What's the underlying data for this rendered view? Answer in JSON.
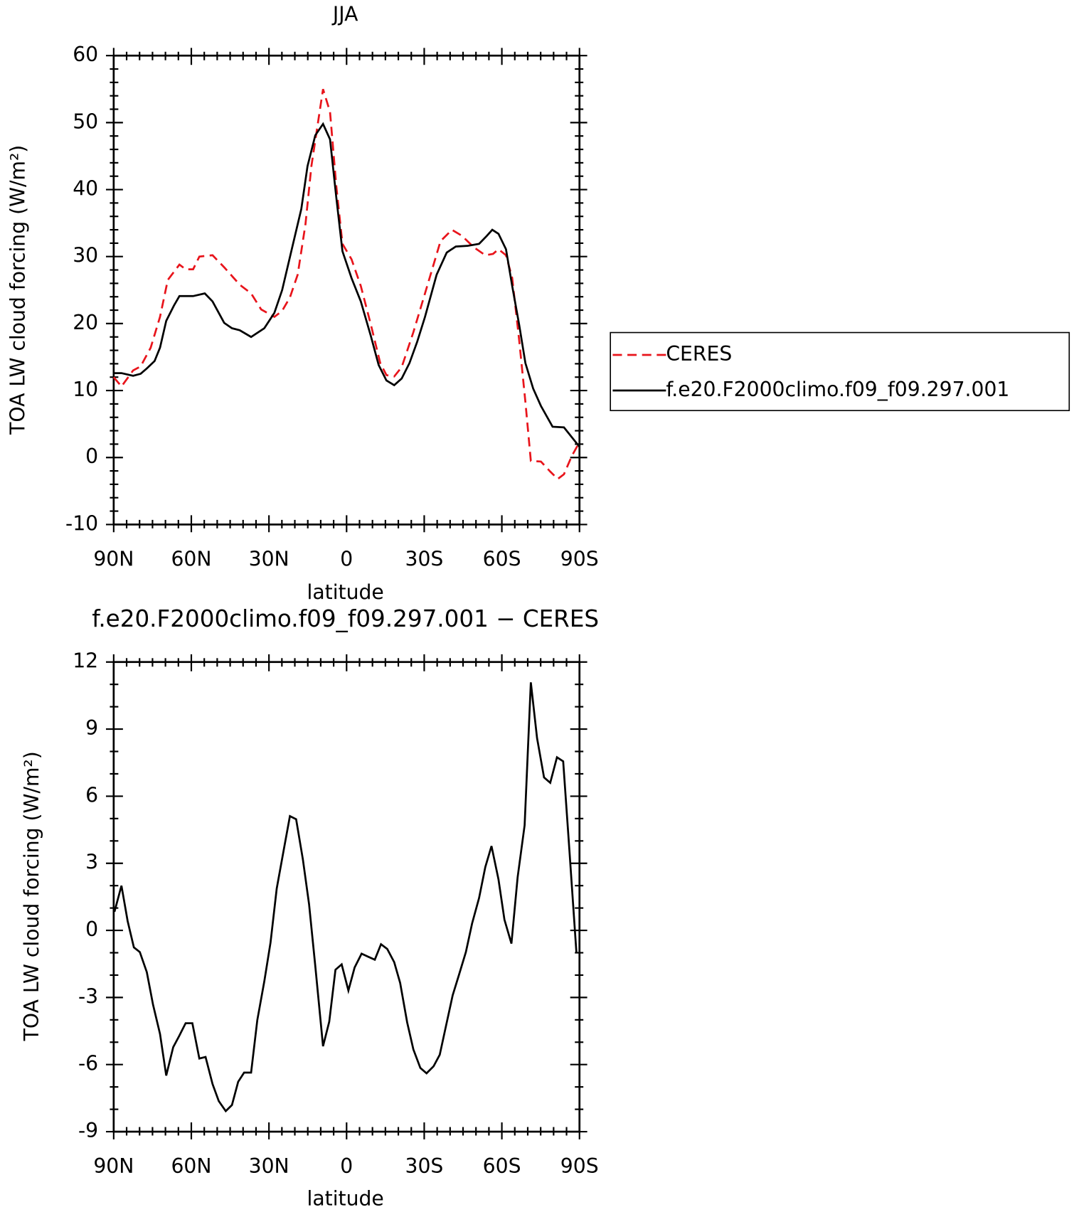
{
  "chart_data": [
    {
      "type": "line",
      "title": "JJA",
      "xlabel": "latitude",
      "ylabel": "TOA LW cloud forcing (W/m²)",
      "xlim": [
        90,
        -90
      ],
      "xticks": [
        {
          "value": 90,
          "label": "90N"
        },
        {
          "value": 60,
          "label": "60N"
        },
        {
          "value": 30,
          "label": "30N"
        },
        0,
        {
          "value": -30,
          "label": "30S"
        },
        {
          "value": -60,
          "label": "60S"
        },
        {
          "value": -90,
          "label": "90S"
        }
      ],
      "ylim": [
        -10,
        60
      ],
      "yticks": [
        -10,
        0,
        10,
        20,
        30,
        40,
        50,
        60
      ],
      "legend": "right",
      "series": [
        {
          "name": "CERES",
          "color": "#e8141b",
          "dashed": true,
          "x": [
            90,
            87.0,
            82.5,
            79.6,
            75.7,
            72.1,
            69.1,
            64.6,
            62.2,
            59.3,
            56.9,
            51.8,
            47.3,
            41.3,
            36.9,
            33.0,
            27.9,
            24.9,
            21.9,
            18.9,
            15.9,
            13.6,
            10.9,
            9.1,
            6.4,
            4.0,
            1.6,
            -1.9,
            -5.5,
            -9.4,
            -13.0,
            -15.4,
            -18.4,
            -21.3,
            -25.8,
            -30.3,
            -36.3,
            -40.7,
            -44.6,
            -49.1,
            -53.6,
            -56.6,
            -58.7,
            -61.6,
            -64.0,
            -66.7,
            -69.1,
            -71.2,
            -75.1,
            -78.7,
            -81.6,
            -84.0,
            -87.0,
            -90
          ],
          "values": [
            12,
            10.6,
            13,
            13.6,
            16.4,
            21,
            26.5,
            28.8,
            28.1,
            28.1,
            30,
            30.2,
            28.4,
            25.8,
            24.5,
            22.1,
            21,
            21.9,
            23.9,
            27.3,
            34.8,
            43.5,
            50.4,
            55,
            51.6,
            40.6,
            31.9,
            29.6,
            25.6,
            19.8,
            14.1,
            12.3,
            12.1,
            13.5,
            18.7,
            24.5,
            32.3,
            34,
            33.1,
            31.4,
            30.2,
            30.4,
            31.1,
            30.2,
            26.8,
            17.5,
            8.3,
            -0.5,
            -0.6,
            -2.1,
            -3.2,
            -2.5,
            0.2,
            2.3
          ]
        },
        {
          "name": "f.e20.F2000climo.f09_f09.297.001",
          "color": "#000000",
          "dashed": false,
          "x": [
            90,
            87.0,
            82.5,
            79.6,
            77.2,
            74.2,
            72.1,
            69.7,
            66.7,
            64.6,
            59.3,
            54.8,
            51.8,
            47.3,
            44.3,
            41.3,
            36.9,
            31.8,
            27.9,
            24.9,
            21.0,
            17.5,
            15.1,
            12.1,
            9.1,
            6.4,
            4.0,
            1.6,
            -1.9,
            -5.5,
            -9.4,
            -12.4,
            -15.4,
            -18.4,
            -21.3,
            -24.3,
            -27.3,
            -30.3,
            -34.8,
            -38.7,
            -42.2,
            -46.7,
            -51.2,
            -54.2,
            -56.3,
            -58.7,
            -61.6,
            -64.0,
            -66.7,
            -69.1,
            -72.1,
            -75.1,
            -79.6,
            -84.0,
            -90
          ],
          "values": [
            12.6,
            12.6,
            12.2,
            12.5,
            13.3,
            14.4,
            16.4,
            20.4,
            22.7,
            24.1,
            24.1,
            24.5,
            23.3,
            20.1,
            19.3,
            19,
            18,
            19.3,
            21.6,
            25,
            31.4,
            37.1,
            43.5,
            48.1,
            49.8,
            47.5,
            38.9,
            30.8,
            26.8,
            23.3,
            18.1,
            13.8,
            11.5,
            10.8,
            11.8,
            14.1,
            17.3,
            21,
            27.3,
            30.6,
            31.5,
            31.6,
            31.9,
            33.1,
            34,
            33.4,
            31.1,
            25.6,
            19.8,
            14.1,
            10.3,
            7.7,
            4.6,
            4.5,
            1.6
          ]
        }
      ]
    },
    {
      "type": "line",
      "title": "f.e20.F2000climo.f09_f09.297.001 − CERES",
      "xlabel": "latitude",
      "ylabel": "TOA LW cloud forcing (W/m²)",
      "xlim": [
        90,
        -90
      ],
      "xticks": [
        {
          "value": 90,
          "label": "90N"
        },
        {
          "value": 60,
          "label": "60N"
        },
        {
          "value": 30,
          "label": "30N"
        },
        0,
        {
          "value": -30,
          "label": "30S"
        },
        {
          "value": -60,
          "label": "60S"
        },
        {
          "value": -90,
          "label": "90S"
        }
      ],
      "ylim": [
        -9,
        12
      ],
      "yticks": [
        -9,
        -6,
        -3,
        0,
        3,
        6,
        9,
        12
      ],
      "color": "#000000",
      "x": [
        89.7,
        87.0,
        84.6,
        82.2,
        79.9,
        77.2,
        74.8,
        72.1,
        69.7,
        67.0,
        64.6,
        62.2,
        59.6,
        56.9,
        54.5,
        51.8,
        49.4,
        46.7,
        44.3,
        41.9,
        39.6,
        36.9,
        34.5,
        31.8,
        29.4,
        27.0,
        24.3,
        21.9,
        19.5,
        16.9,
        14.5,
        12.1,
        9.1,
        6.7,
        4.3,
        1.9,
        -0.7,
        -3.1,
        -5.8,
        -8.2,
        -10.9,
        -13.3,
        -15.7,
        -18.4,
        -20.7,
        -23.4,
        -25.8,
        -28.5,
        -30.9,
        -33.6,
        -36.0,
        -38.4,
        -41.0,
        -43.4,
        -46.1,
        -48.5,
        -51.2,
        -53.6,
        -56.0,
        -58.7,
        -61.0,
        -63.7,
        -66.1,
        -68.8,
        -71.2,
        -73.6,
        -76.3,
        -78.7,
        -81.3,
        -83.7,
        -86.1,
        -88.8
      ],
      "values": [
        0.83,
        2.0,
        0.41,
        -0.76,
        -0.97,
        -1.87,
        -3.32,
        -4.63,
        -6.49,
        -5.22,
        -4.7,
        -4.15,
        -4.15,
        -5.73,
        -5.66,
        -6.87,
        -7.63,
        -8.08,
        -7.81,
        -6.77,
        -6.36,
        -6.36,
        -4.01,
        -2.28,
        -0.55,
        1.87,
        3.59,
        5.11,
        4.97,
        3.18,
        1.17,
        -1.59,
        -5.18,
        -4.08,
        -1.76,
        -1.52,
        -2.69,
        -1.66,
        -1.04,
        -1.17,
        -1.31,
        -0.62,
        -0.83,
        -1.42,
        -2.35,
        -4.11,
        -5.32,
        -6.15,
        -6.39,
        -6.08,
        -5.56,
        -4.28,
        -2.9,
        -2.0,
        -0.97,
        0.31,
        1.45,
        2.83,
        3.77,
        2.28,
        0.48,
        -0.59,
        2.38,
        4.7,
        11.09,
        8.6,
        6.84,
        6.6,
        7.74,
        7.56,
        3.59,
        -0.97
      ]
    }
  ]
}
